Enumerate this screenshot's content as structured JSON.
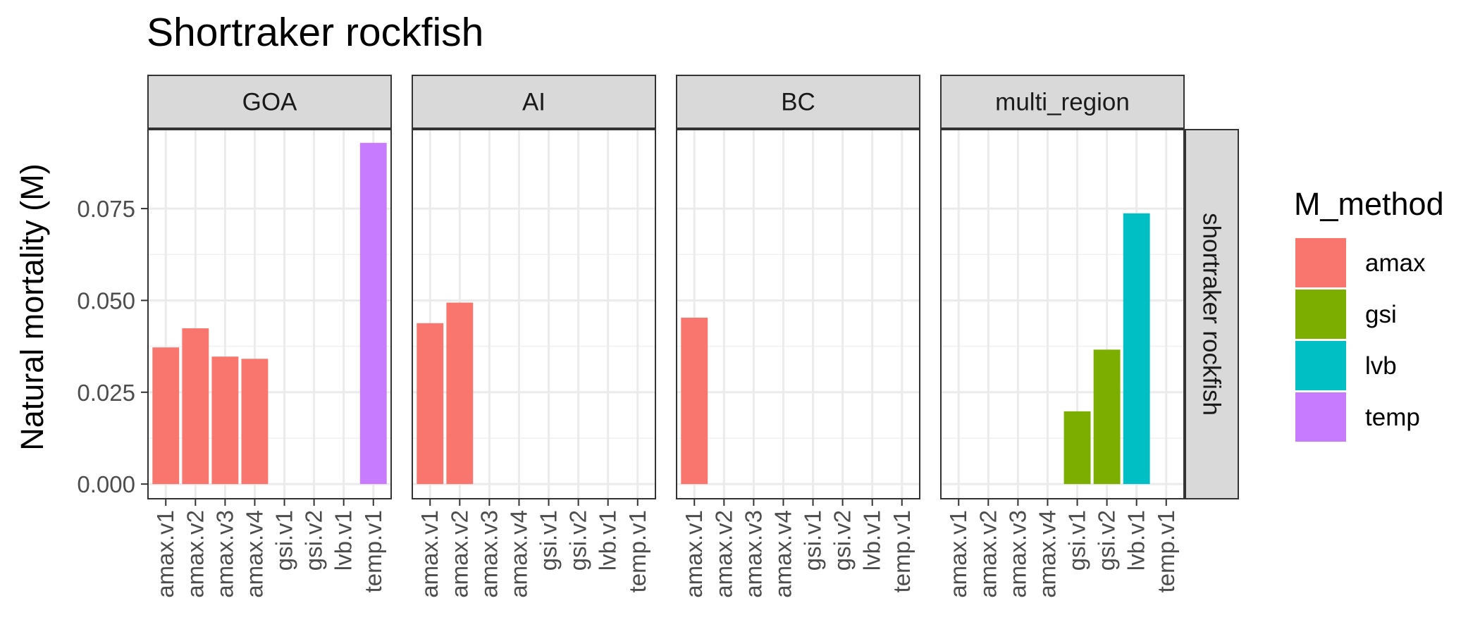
{
  "chart_data": {
    "type": "bar",
    "title": "Shortraker rockfish",
    "ylabel": "Natural mortality (M)",
    "xlabel": "",
    "ylim": [
      -0.004,
      0.0965
    ],
    "yticks": [
      0.0,
      0.025,
      0.05,
      0.075
    ],
    "ytick_labels": [
      "0.000",
      "0.025",
      "0.050",
      "0.075"
    ],
    "categories": [
      "amax.v1",
      "amax.v2",
      "amax.v3",
      "amax.v4",
      "gsi.v1",
      "gsi.v2",
      "lvb.v1",
      "temp.v1"
    ],
    "facet_row_label": "shortraker rockfish",
    "grid": true,
    "legend": {
      "title": "M_method",
      "position": "right",
      "entries": [
        {
          "label": "amax",
          "color": "#F8766D"
        },
        {
          "label": "gsi",
          "color": "#7CAE00"
        },
        {
          "label": "lvb",
          "color": "#00BFC4"
        },
        {
          "label": "temp",
          "color": "#C77CFF"
        }
      ]
    },
    "panels": [
      {
        "label": "GOA",
        "bars": [
          {
            "category": "amax.v1",
            "value": 0.0372,
            "method": "amax"
          },
          {
            "category": "amax.v2",
            "value": 0.0424,
            "method": "amax"
          },
          {
            "category": "amax.v3",
            "value": 0.0347,
            "method": "amax"
          },
          {
            "category": "amax.v4",
            "value": 0.0341,
            "method": "amax"
          },
          {
            "category": "temp.v1",
            "value": 0.0929,
            "method": "temp"
          }
        ]
      },
      {
        "label": "AI",
        "bars": [
          {
            "category": "amax.v1",
            "value": 0.0438,
            "method": "amax"
          },
          {
            "category": "amax.v2",
            "value": 0.0494,
            "method": "amax"
          }
        ]
      },
      {
        "label": "BC",
        "bars": [
          {
            "category": "amax.v1",
            "value": 0.0453,
            "method": "amax"
          }
        ]
      },
      {
        "label": "multi_region",
        "bars": [
          {
            "category": "gsi.v1",
            "value": 0.0198,
            "method": "gsi"
          },
          {
            "category": "gsi.v2",
            "value": 0.0366,
            "method": "gsi"
          },
          {
            "category": "lvb.v1",
            "value": 0.0737,
            "method": "lvb"
          }
        ]
      }
    ]
  }
}
